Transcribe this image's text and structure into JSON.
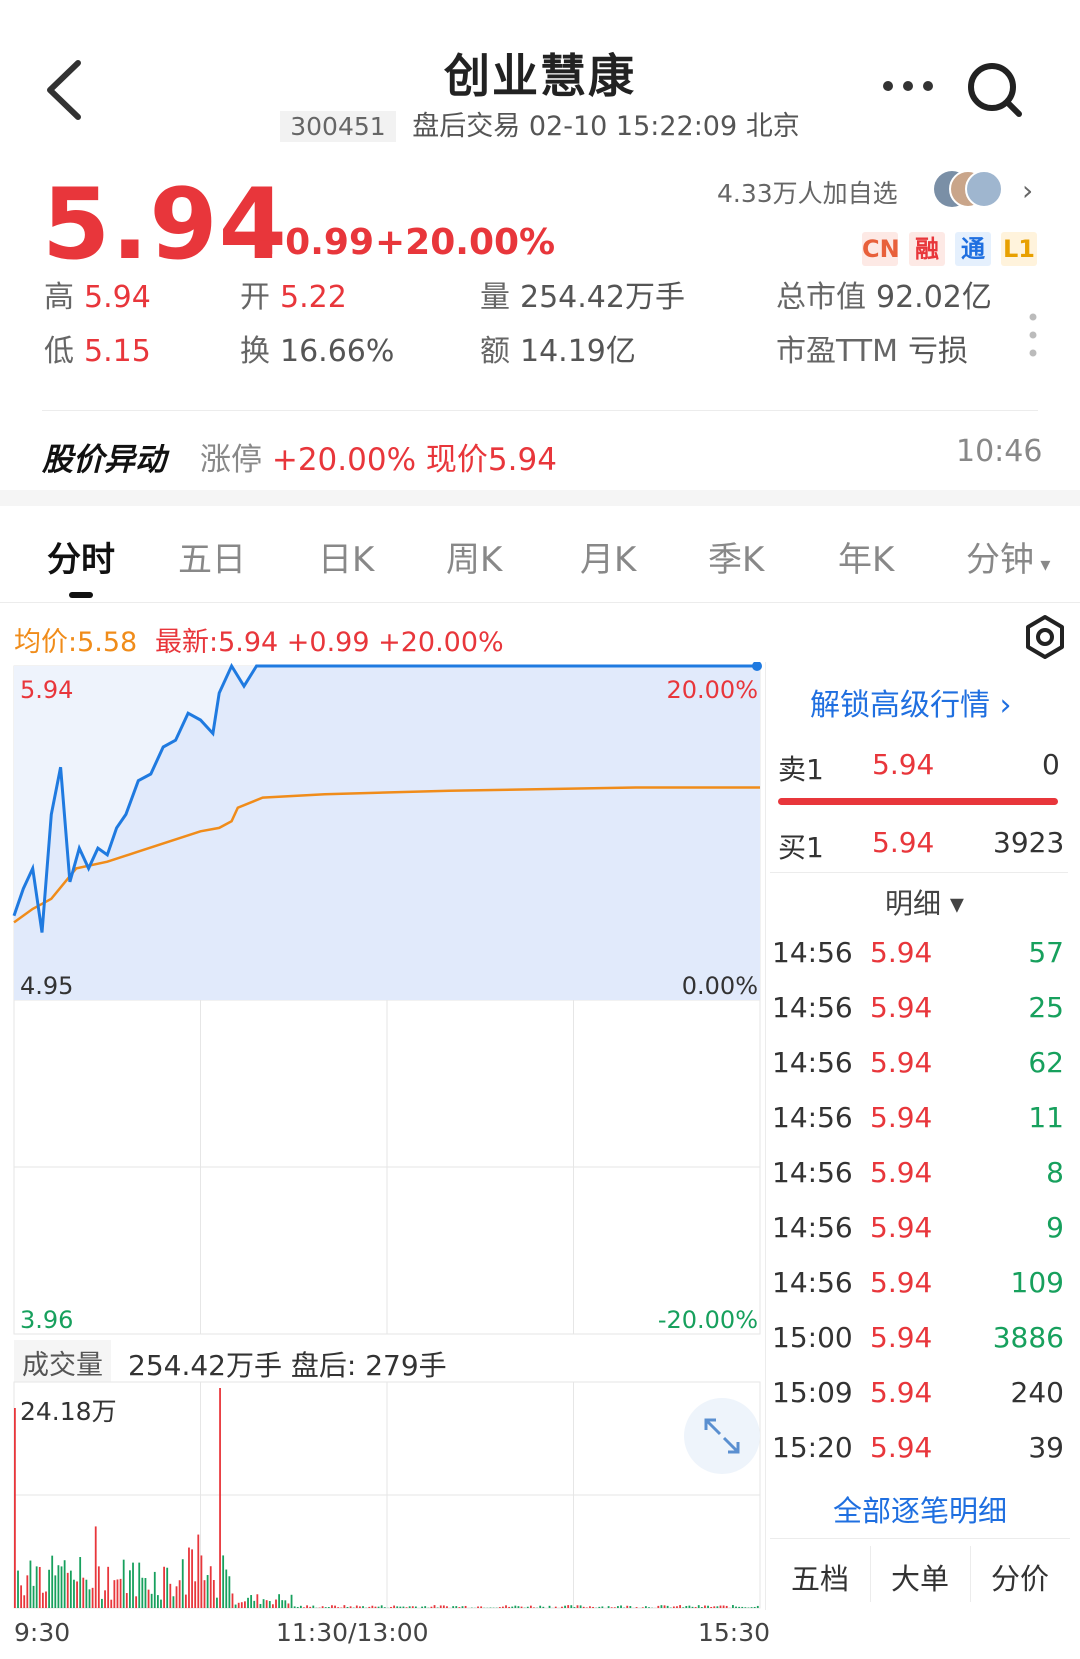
{
  "header": {
    "title": "创业慧康",
    "code": "300451",
    "session": "盘后交易 02-10 15:22:09 北京"
  },
  "quote": {
    "price": "5.94",
    "change": "+0.99",
    "change_pct": "+20.00%",
    "watchers": "4.33万人加自选",
    "tags": [
      "CN",
      "融",
      "通",
      "L1"
    ]
  },
  "stats": {
    "high": {
      "label": "高",
      "value": "5.94"
    },
    "low": {
      "label": "低",
      "value": "5.15"
    },
    "open": {
      "label": "开",
      "value": "5.22"
    },
    "turnover": {
      "label": "换",
      "value": "16.66%"
    },
    "volume": {
      "label": "量",
      "value": "254.42万手"
    },
    "amount": {
      "label": "额",
      "value": "14.19亿"
    },
    "mktcap": {
      "label": "总市值",
      "value": "92.02亿"
    },
    "pe": {
      "label": "市盈TTM",
      "value": "亏损"
    }
  },
  "alert": {
    "title": "股价异动",
    "text_gray": "涨停 ",
    "text_red": "+20.00% 现价5.94",
    "time": "10:46"
  },
  "tabs": [
    "分时",
    "五日",
    "日K",
    "周K",
    "月K",
    "季K",
    "年K",
    "分钟"
  ],
  "legend": {
    "avg": "均价:5.58",
    "latest": "最新:5.94  +0.99  +20.00%"
  },
  "chart_data": {
    "type": "line",
    "y_labels": {
      "top": "5.94",
      "mid": "4.95",
      "bottom": "3.96"
    },
    "pct_labels": {
      "top": "20.00%",
      "mid": "0.00%",
      "bottom": "-20.00%"
    },
    "ylim": [
      3.96,
      5.94
    ],
    "x_ticks": [
      "9:30",
      "11:30/13:00",
      "15:30"
    ],
    "series": [
      {
        "color": "#1f7ae0",
        "x": [
          0,
          3,
          6,
          9,
          12,
          15,
          18,
          21,
          24,
          27,
          30,
          33,
          36,
          40,
          44,
          48,
          52,
          56,
          60,
          64,
          66,
          70,
          74,
          78,
          80,
          240
        ],
        "values": [
          5.2,
          5.28,
          5.34,
          5.15,
          5.5,
          5.64,
          5.3,
          5.4,
          5.34,
          5.4,
          5.38,
          5.46,
          5.5,
          5.6,
          5.62,
          5.7,
          5.72,
          5.8,
          5.78,
          5.74,
          5.86,
          5.94,
          5.88,
          5.94,
          5.94,
          5.94
        ]
      },
      {
        "color": "#f08c1a",
        "x": [
          0,
          6,
          12,
          20,
          30,
          40,
          50,
          60,
          66,
          70,
          72,
          80,
          100,
          140,
          200,
          240
        ],
        "values": [
          5.18,
          5.22,
          5.25,
          5.34,
          5.36,
          5.39,
          5.42,
          5.45,
          5.46,
          5.48,
          5.52,
          5.55,
          5.56,
          5.57,
          5.58,
          5.58
        ]
      }
    ]
  },
  "volume": {
    "label": "成交量",
    "text": "254.42万手  盘后: 279手",
    "max": "24.18万"
  },
  "orderbook": {
    "unlock": "解锁高级行情",
    "sell": {
      "label": "卖1",
      "price": "5.94",
      "qty": "0"
    },
    "buy": {
      "label": "买1",
      "price": "5.94",
      "qty": "3923"
    },
    "detail_title": "明细 ▾",
    "trades": [
      {
        "time": "14:56",
        "price": "5.94",
        "qty": "57",
        "side": "buy"
      },
      {
        "time": "14:56",
        "price": "5.94",
        "qty": "25",
        "side": "buy"
      },
      {
        "time": "14:56",
        "price": "5.94",
        "qty": "62",
        "side": "buy"
      },
      {
        "time": "14:56",
        "price": "5.94",
        "qty": "11",
        "side": "buy"
      },
      {
        "time": "14:56",
        "price": "5.94",
        "qty": "8",
        "side": "buy"
      },
      {
        "time": "14:56",
        "price": "5.94",
        "qty": "9",
        "side": "buy"
      },
      {
        "time": "14:56",
        "price": "5.94",
        "qty": "109",
        "side": "buy"
      },
      {
        "time": "15:00",
        "price": "5.94",
        "qty": "3886",
        "side": "buy"
      },
      {
        "time": "15:09",
        "price": "5.94",
        "qty": "240",
        "side": "neutral"
      },
      {
        "time": "15:20",
        "price": "5.94",
        "qty": "39",
        "side": "neutral"
      }
    ],
    "all_detail": "全部逐笔明细",
    "bottom_tabs": [
      "五档",
      "大单",
      "分价"
    ]
  }
}
